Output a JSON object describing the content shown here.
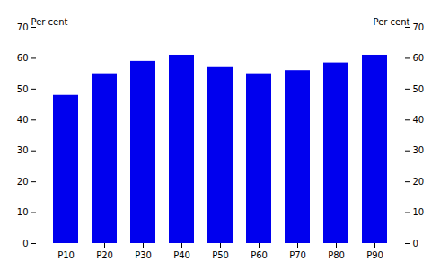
{
  "chart_data": {
    "type": "bar",
    "categories": [
      "P10",
      "P20",
      "P30",
      "P40",
      "P50",
      "P60",
      "P70",
      "P80",
      "P90"
    ],
    "values": [
      48,
      55,
      59,
      61,
      57,
      55,
      56,
      58.5,
      61
    ],
    "color": "#0000EE",
    "ylabel": "Per cent",
    "y2label": "Per cent",
    "ylim": [
      0,
      70
    ],
    "yticks": [
      0,
      10,
      20,
      30,
      40,
      50,
      60,
      70
    ],
    "y2lim": [
      0,
      70
    ],
    "y2ticks": [
      0,
      10,
      20,
      30,
      40,
      50,
      60,
      70
    ],
    "grid": false
  }
}
